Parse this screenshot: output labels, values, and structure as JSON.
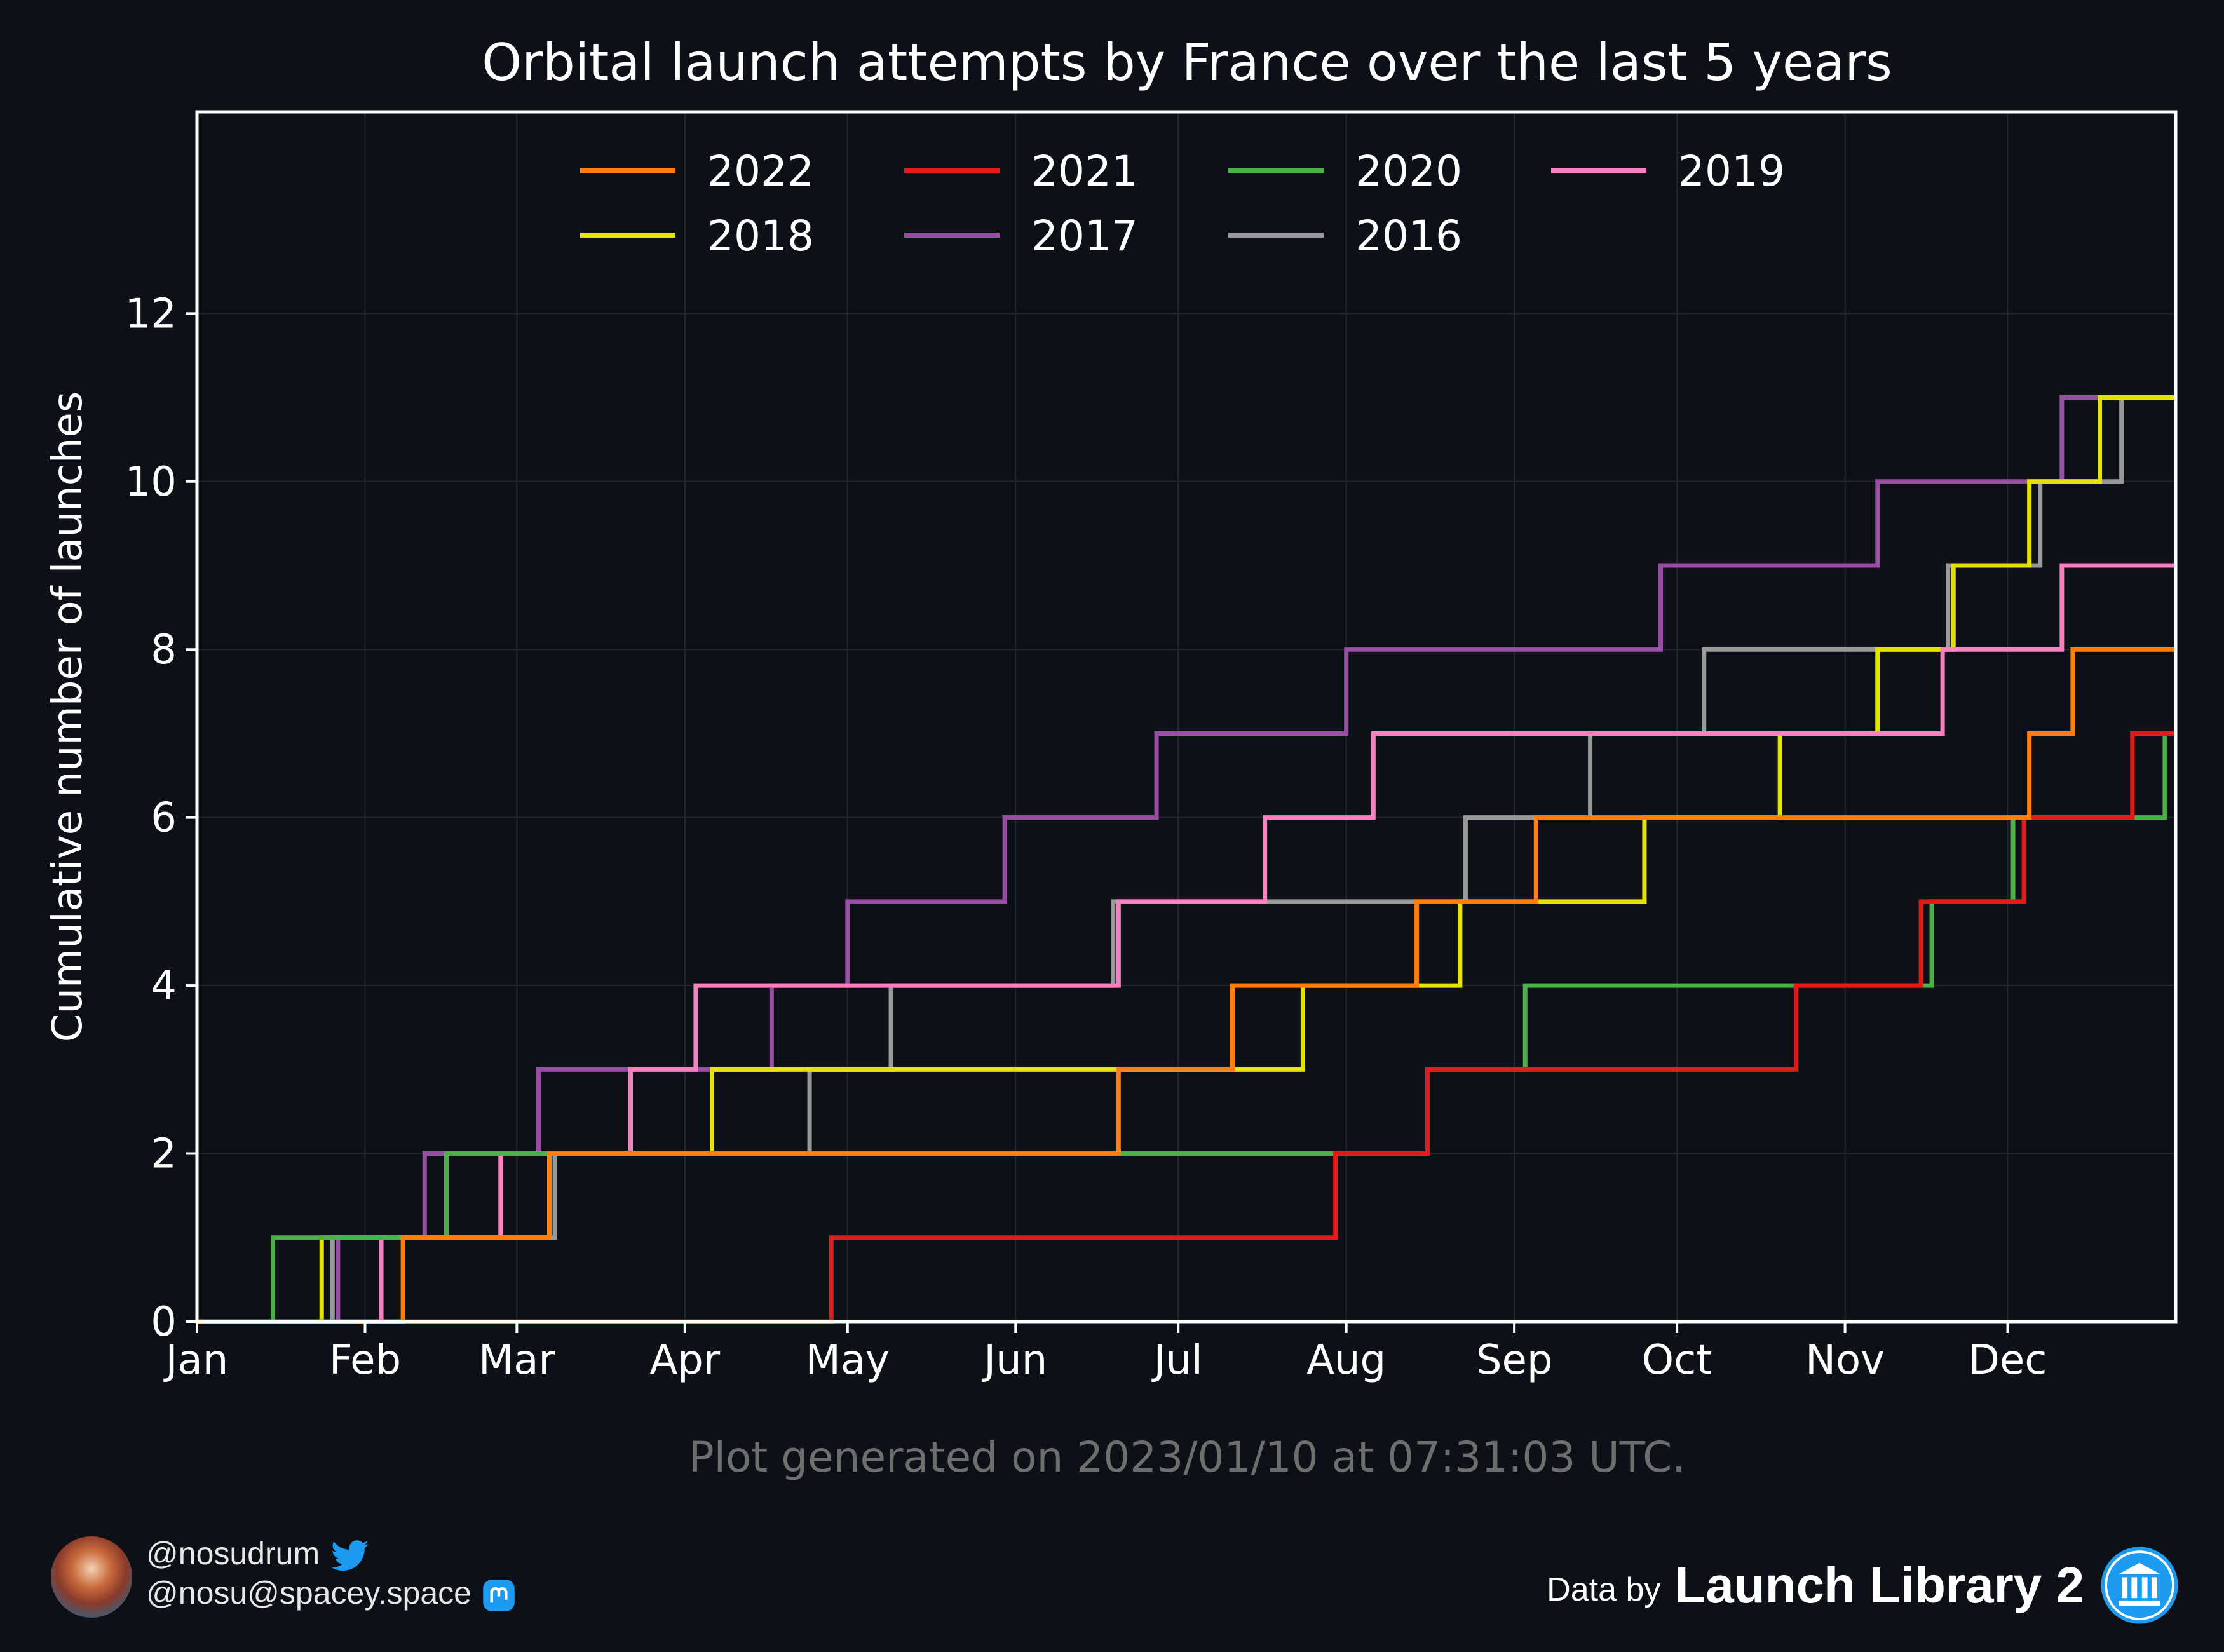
{
  "chart_data": {
    "type": "line",
    "step": "post",
    "title": "Orbital launch attempts by France over the last 5 years",
    "ylabel": "Cumulative number of launches",
    "xlabel": "",
    "xlim": [
      1,
      366
    ],
    "ylim": [
      0,
      14.4
    ],
    "yticks": [
      0,
      2,
      4,
      6,
      8,
      10,
      12
    ],
    "xticks": [
      {
        "label": "Jan",
        "day": 1
      },
      {
        "label": "Feb",
        "day": 32
      },
      {
        "label": "Mar",
        "day": 60
      },
      {
        "label": "Apr",
        "day": 91
      },
      {
        "label": "May",
        "day": 121
      },
      {
        "label": "Jun",
        "day": 152
      },
      {
        "label": "Jul",
        "day": 182
      },
      {
        "label": "Aug",
        "day": 213
      },
      {
        "label": "Sep",
        "day": 244
      },
      {
        "label": "Oct",
        "day": 274
      },
      {
        "label": "Nov",
        "day": 305
      },
      {
        "label": "Dec",
        "day": 335
      }
    ],
    "grid": true,
    "legend": "top, 4 columns",
    "series": [
      {
        "name": "2022",
        "color": "#ff7f0e",
        "launch_days": [
          39,
          66,
          171,
          192,
          226,
          248,
          339,
          347
        ]
      },
      {
        "name": "2021",
        "color": "#e31a1c",
        "launch_days": [
          118,
          211,
          228,
          296,
          319,
          338,
          358
        ]
      },
      {
        "name": "2020",
        "color": "#4daf4a",
        "launch_days": [
          15,
          47,
          228,
          246,
          321,
          336,
          364
        ]
      },
      {
        "name": "2019",
        "color": "#f781bf",
        "launch_days": [
          35,
          57,
          81,
          93,
          171,
          198,
          218,
          323,
          345
        ]
      },
      {
        "name": "2018",
        "color": "#e5e400",
        "launch_days": [
          24,
          66,
          96,
          205,
          234,
          268,
          293,
          311,
          325,
          339,
          352
        ]
      },
      {
        "name": "2017",
        "color": "#984ea3",
        "launch_days": [
          27,
          43,
          64,
          107,
          121,
          150,
          178,
          213,
          271,
          311,
          345
        ]
      },
      {
        "name": "2016",
        "color": "#999999",
        "launch_days": [
          26,
          67,
          114,
          129,
          170,
          235,
          258,
          279,
          324,
          341,
          356
        ]
      }
    ],
    "legend_order": [
      "2022",
      "2021",
      "2020",
      "2019",
      "2018",
      "2017",
      "2016"
    ],
    "annotation": "Plot generated on 2023/01/10 at 07:31:03 UTC."
  },
  "footer": {
    "handle_twitter": "@nosudrum",
    "handle_mastodon": "@nosu@spacey.space",
    "data_by": "Data by",
    "source": "Launch Library 2"
  },
  "colors": {
    "background": "#0d1017",
    "twitter": "#1d9bf0",
    "mastodon": "#6364ff",
    "annotation": "#6e6e6e"
  }
}
